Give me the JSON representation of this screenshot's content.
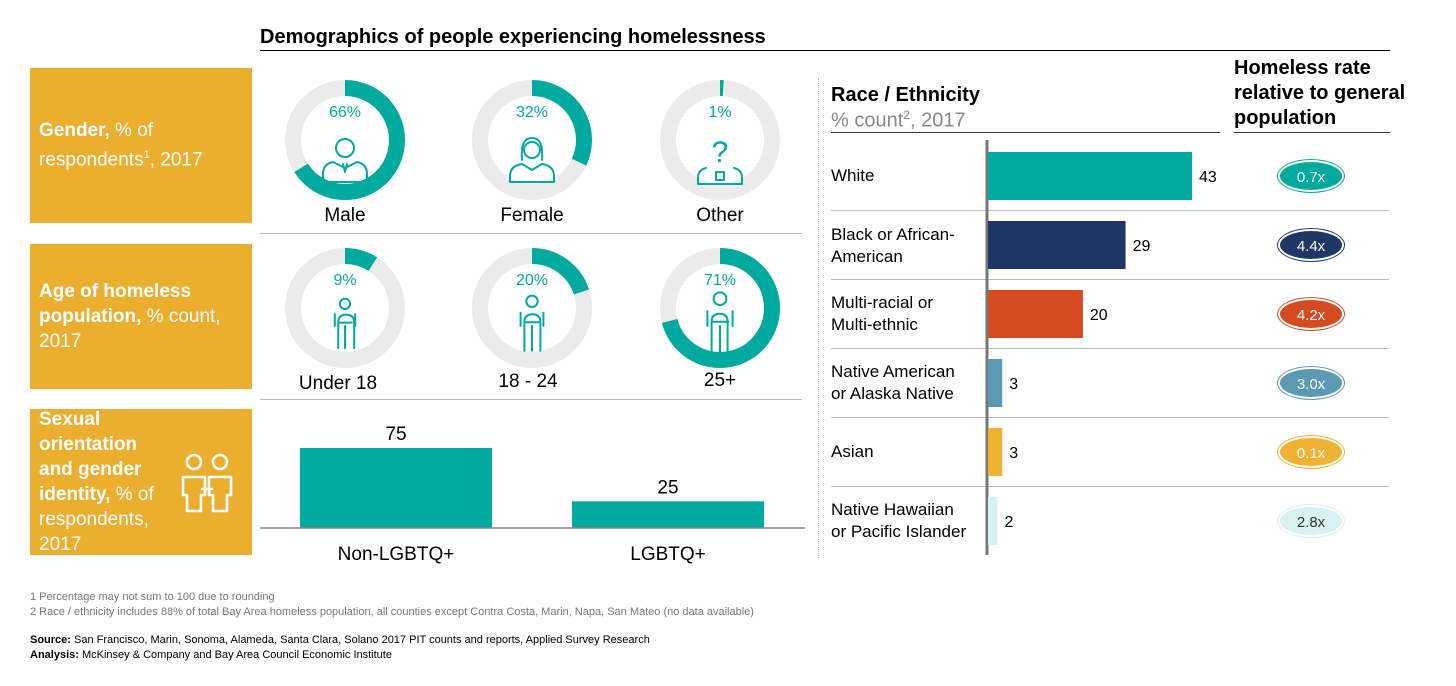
{
  "title": "Demographics of people experiencing homelessness",
  "gender_box": {
    "bold": "Gender,",
    "rest": " % of respondents",
    "sup": "1",
    "tail": ", 2017"
  },
  "age_box": {
    "bold": "Age of homeless population,",
    "rest": " % count, 2017"
  },
  "sexual_box": {
    "bold": "Sexual orientation and gender identity,",
    "rest": " % of respondents, 2017"
  },
  "race_header": {
    "title": "Race / Ethnicity",
    "sub": "% count",
    "sup": "2",
    "tail": ", 2017"
  },
  "rate_header": "Homeless rate relative to general population",
  "colors": {
    "teal": "#00aa9e",
    "track": "#ebebeb",
    "box": "#ecae2f",
    "navy": "#1f3765",
    "orange": "#d64a1f",
    "steel": "#5c9ab3",
    "gold": "#f0b232",
    "pale": "#d7f2f0"
  },
  "chart_data": [
    {
      "type": "pie",
      "title": "Gender, % of respondents, 2017",
      "categories": [
        "Male",
        "Female",
        "Other"
      ],
      "values": [
        66,
        32,
        1
      ],
      "value_labels": [
        "66%",
        "32%",
        "1%"
      ]
    },
    {
      "type": "pie",
      "title": "Age of homeless population, % count, 2017",
      "categories": [
        "Under 18",
        "18 - 24",
        "25+"
      ],
      "values": [
        9,
        20,
        71
      ],
      "value_labels": [
        "9%",
        "20%",
        "71%"
      ]
    },
    {
      "type": "bar",
      "title": "Sexual orientation and gender identity, % of respondents, 2017",
      "categories": [
        "Non-LGBTQ+",
        "LGBTQ+"
      ],
      "values": [
        75,
        25
      ]
    },
    {
      "type": "bar",
      "title": "Race / Ethnicity % count, 2017",
      "orientation": "horizontal",
      "categories": [
        "White",
        "Black or African-American",
        "Multi-racial or Multi-ethnic",
        "Native American or Alaska Native",
        "Asian",
        "Native Hawaiian or Pacific Islander"
      ],
      "label_lines": [
        [
          "White"
        ],
        [
          "Black or African-",
          "American"
        ],
        [
          "Multi-racial or",
          "Multi-ethnic"
        ],
        [
          "Native American",
          "or Alaska Native"
        ],
        [
          "Asian"
        ],
        [
          "Native Hawaiian",
          "or Pacific Islander"
        ]
      ],
      "values": [
        43,
        29,
        20,
        3,
        3,
        2
      ],
      "bar_colors": [
        "#00aa9e",
        "#1f3765",
        "#d64a1f",
        "#5c9ab3",
        "#f0b232",
        "#d7f2f0"
      ],
      "rate_header": "Homeless rate relative to general population",
      "rate_labels": [
        "0.7x",
        "4.4x",
        "4.2x",
        "3.0x",
        "0.1x",
        "2.8x"
      ],
      "rate_colors": [
        "#00aa9e",
        "#1f3765",
        "#d64a1f",
        "#5c9ab3",
        "#f0b232",
        "#d7f2f0"
      ]
    }
  ],
  "footnotes": [
    "1 Percentage may not sum to 100 due to rounding",
    "2 Race / ethnicity includes 88% of total Bay Area homeless population, all counties except Contra Costa, Marin, Napa, San Mateo (no data available)"
  ],
  "source": {
    "label": "Source:",
    "text": " San Francisco, Marin, Sonoma, Alameda, Santa Clara, Solano 2017 PIT counts and reports, Applied Survey Research"
  },
  "analysis": {
    "label": "Analysis:",
    "text": " McKinsey & Company and Bay Area Council Economic Institute"
  }
}
